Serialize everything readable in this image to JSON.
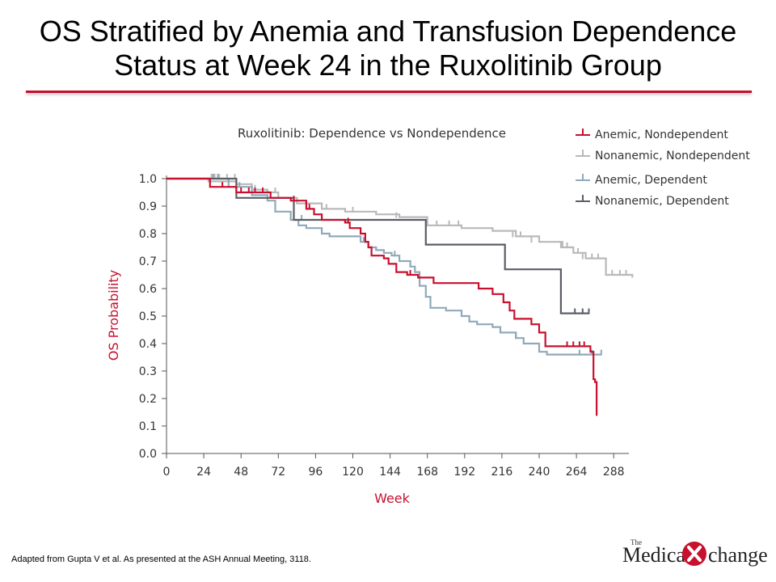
{
  "slide": {
    "title_line1": "OS Stratified by Anemia and Transfusion Dependence",
    "title_line2": "Status at Week 24 in the Ruxolitinib Group",
    "footnote": "Adapted from Gupta V et al. As presented at the ASH Annual Meeting, 3118.",
    "logo": {
      "the": "The",
      "left": "Medical",
      "right": "change"
    }
  },
  "colors": {
    "accent": "#c8102e",
    "anemic_nondependent": "#c8102e",
    "nonanemic_nondependent": "#b9b9b9",
    "anemic_dependent": "#8fa9ba",
    "nonanemic_dependent": "#5a5e66"
  },
  "chart_data": {
    "type": "line",
    "title": "Ruxolitinib: Dependence vs Nondependence",
    "xlabel": "Week",
    "ylabel": "OS Probability",
    "xlim": [
      0,
      300
    ],
    "ylim": [
      0,
      1.0
    ],
    "xticks": [
      0,
      24,
      48,
      72,
      96,
      120,
      144,
      168,
      192,
      216,
      240,
      264,
      288
    ],
    "yticks": [
      "0.0",
      "0.1",
      "0.2",
      "0.3",
      "0.4",
      "0.5",
      "0.6",
      "0.7",
      "0.8",
      "0.9",
      "1.0"
    ],
    "legend_position": "top-right",
    "step": true,
    "series": [
      {
        "name": "Nonanemic, Nondependent",
        "color": "#b9b9b9",
        "points": [
          [
            0,
            1.0
          ],
          [
            25,
            1.0
          ],
          [
            27,
            0.99
          ],
          [
            45,
            0.98
          ],
          [
            55,
            0.96
          ],
          [
            65,
            0.95
          ],
          [
            72,
            0.93
          ],
          [
            84,
            0.91
          ],
          [
            100,
            0.89
          ],
          [
            115,
            0.88
          ],
          [
            135,
            0.87
          ],
          [
            150,
            0.86
          ],
          [
            168,
            0.83
          ],
          [
            190,
            0.82
          ],
          [
            210,
            0.81
          ],
          [
            225,
            0.79
          ],
          [
            240,
            0.77
          ],
          [
            255,
            0.75
          ],
          [
            262,
            0.73
          ],
          [
            270,
            0.71
          ],
          [
            283,
            0.65
          ],
          [
            300,
            0.64
          ]
        ],
        "censors": [
          [
            29,
            1.0
          ],
          [
            31,
            1.0
          ],
          [
            34,
            1.0
          ],
          [
            39,
            1.0
          ],
          [
            44,
            1.0
          ],
          [
            57,
            0.96
          ],
          [
            70,
            0.95
          ],
          [
            103,
            0.89
          ],
          [
            120,
            0.88
          ],
          [
            148,
            0.86
          ],
          [
            174,
            0.83
          ],
          [
            182,
            0.83
          ],
          [
            188,
            0.83
          ],
          [
            223,
            0.79
          ],
          [
            228,
            0.79
          ],
          [
            235,
            0.77
          ],
          [
            254,
            0.75
          ],
          [
            258,
            0.75
          ],
          [
            265,
            0.73
          ],
          [
            268,
            0.71
          ],
          [
            274,
            0.71
          ],
          [
            278,
            0.71
          ],
          [
            287,
            0.65
          ],
          [
            292,
            0.65
          ],
          [
            296,
            0.65
          ]
        ]
      },
      {
        "name": "Anemic, Dependent",
        "color": "#8fa9ba",
        "points": [
          [
            0,
            1.0
          ],
          [
            28,
            1.0
          ],
          [
            40,
            0.97
          ],
          [
            55,
            0.94
          ],
          [
            65,
            0.92
          ],
          [
            70,
            0.88
          ],
          [
            80,
            0.85
          ],
          [
            85,
            0.83
          ],
          [
            90,
            0.82
          ],
          [
            100,
            0.8
          ],
          [
            105,
            0.79
          ],
          [
            125,
            0.77
          ],
          [
            130,
            0.75
          ],
          [
            135,
            0.74
          ],
          [
            140,
            0.73
          ],
          [
            145,
            0.72
          ],
          [
            150,
            0.7
          ],
          [
            157,
            0.68
          ],
          [
            160,
            0.66
          ],
          [
            163,
            0.61
          ],
          [
            167,
            0.57
          ],
          [
            170,
            0.53
          ],
          [
            180,
            0.52
          ],
          [
            190,
            0.5
          ],
          [
            195,
            0.48
          ],
          [
            200,
            0.47
          ],
          [
            210,
            0.46
          ],
          [
            215,
            0.44
          ],
          [
            225,
            0.42
          ],
          [
            230,
            0.4
          ],
          [
            240,
            0.37
          ],
          [
            245,
            0.36
          ],
          [
            280,
            0.36
          ]
        ],
        "censors": [
          [
            30,
            1.0
          ],
          [
            33,
            1.0
          ],
          [
            47,
            0.97
          ],
          [
            87,
            0.85
          ],
          [
            127,
            0.77
          ],
          [
            147,
            0.72
          ],
          [
            225,
            0.42
          ],
          [
            266,
            0.36
          ],
          [
            274,
            0.36
          ],
          [
            280,
            0.36
          ]
        ]
      },
      {
        "name": "Nonanemic, Dependent",
        "color": "#5a5e66",
        "points": [
          [
            0,
            1.0
          ],
          [
            40,
            1.0
          ],
          [
            45,
            0.93
          ],
          [
            75,
            0.93
          ],
          [
            82,
            0.85
          ],
          [
            167,
            0.85
          ],
          [
            167,
            0.76
          ],
          [
            218,
            0.76
          ],
          [
            218,
            0.67
          ],
          [
            254,
            0.67
          ],
          [
            254,
            0.51
          ],
          [
            272,
            0.51
          ]
        ],
        "censors": [
          [
            263,
            0.51
          ],
          [
            268,
            0.51
          ],
          [
            272,
            0.51
          ]
        ]
      },
      {
        "name": "Anemic, Nondependent",
        "color": "#c8102e",
        "points": [
          [
            0,
            1.0
          ],
          [
            25,
            1.0
          ],
          [
            28,
            0.97
          ],
          [
            45,
            0.95
          ],
          [
            67,
            0.93
          ],
          [
            80,
            0.92
          ],
          [
            90,
            0.89
          ],
          [
            95,
            0.87
          ],
          [
            100,
            0.85
          ],
          [
            115,
            0.84
          ],
          [
            118,
            0.82
          ],
          [
            125,
            0.8
          ],
          [
            128,
            0.77
          ],
          [
            130,
            0.75
          ],
          [
            132,
            0.72
          ],
          [
            140,
            0.71
          ],
          [
            143,
            0.69
          ],
          [
            148,
            0.66
          ],
          [
            155,
            0.65
          ],
          [
            162,
            0.64
          ],
          [
            172,
            0.62
          ],
          [
            190,
            0.62
          ],
          [
            201,
            0.6
          ],
          [
            210,
            0.58
          ],
          [
            217,
            0.55
          ],
          [
            221,
            0.52
          ],
          [
            224,
            0.49
          ],
          [
            235,
            0.47
          ],
          [
            240,
            0.44
          ],
          [
            244,
            0.39
          ],
          [
            255,
            0.39
          ],
          [
            270,
            0.39
          ],
          [
            273,
            0.37
          ],
          [
            275,
            0.27
          ],
          [
            276,
            0.26
          ],
          [
            277,
            0.14
          ]
        ],
        "censors": [
          [
            36,
            0.97
          ],
          [
            48,
            0.95
          ],
          [
            53,
            0.95
          ],
          [
            57,
            0.95
          ],
          [
            62,
            0.95
          ],
          [
            82,
            0.92
          ],
          [
            92,
            0.89
          ],
          [
            117,
            0.84
          ],
          [
            157,
            0.65
          ],
          [
            258,
            0.39
          ],
          [
            262,
            0.39
          ],
          [
            266,
            0.39
          ],
          [
            269,
            0.39
          ],
          [
            277,
            0.14
          ]
        ]
      }
    ],
    "legend_order": [
      "Anemic, Nondependent",
      "Nonanemic, Nondependent",
      "Anemic, Dependent",
      "Nonanemic, Dependent"
    ]
  }
}
